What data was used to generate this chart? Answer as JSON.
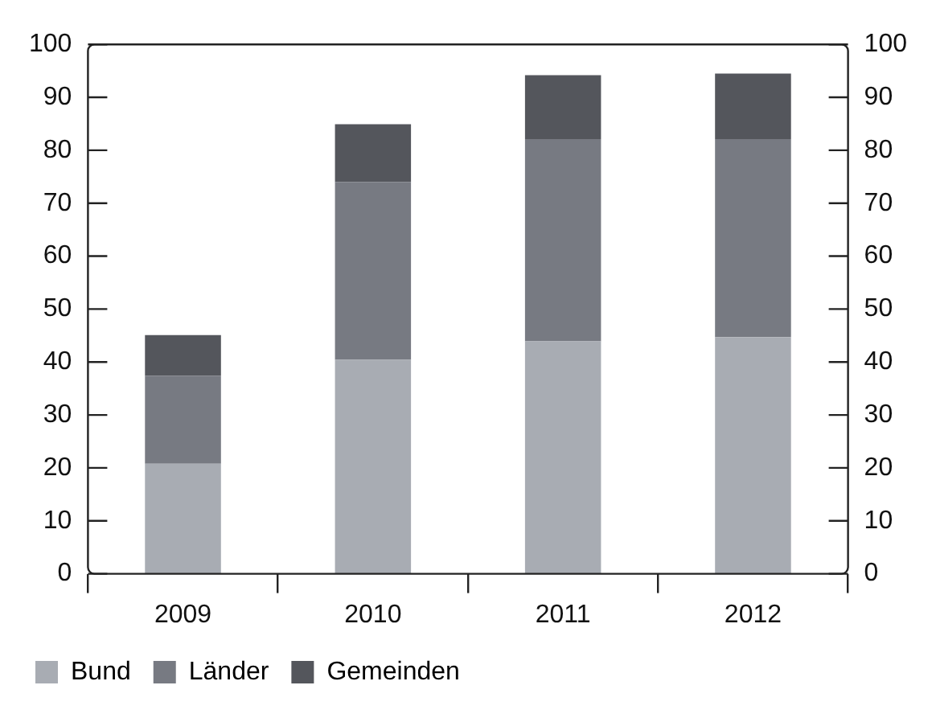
{
  "chart_data": {
    "type": "bar",
    "stacked": true,
    "categories": [
      "2009",
      "2010",
      "2011",
      "2012"
    ],
    "series": [
      {
        "name": "Bund",
        "color": "#a8acb3",
        "values": [
          20.8,
          40.4,
          43.9,
          44.7
        ]
      },
      {
        "name": "Länder",
        "color": "#777a82",
        "values": [
          16.6,
          33.6,
          38.2,
          37.4
        ]
      },
      {
        "name": "Gemeinden",
        "color": "#54565c",
        "values": [
          7.7,
          10.9,
          12.1,
          12.4
        ]
      }
    ],
    "ylim": [
      0,
      100
    ],
    "yticks": [
      0,
      10,
      20,
      30,
      40,
      50,
      60,
      70,
      80,
      90,
      100
    ],
    "y2lim": [
      0,
      100
    ],
    "y2ticks": [
      0,
      10,
      20,
      30,
      40,
      50,
      60,
      70,
      80,
      90,
      100
    ],
    "grid": false,
    "legend": "bottom left"
  }
}
